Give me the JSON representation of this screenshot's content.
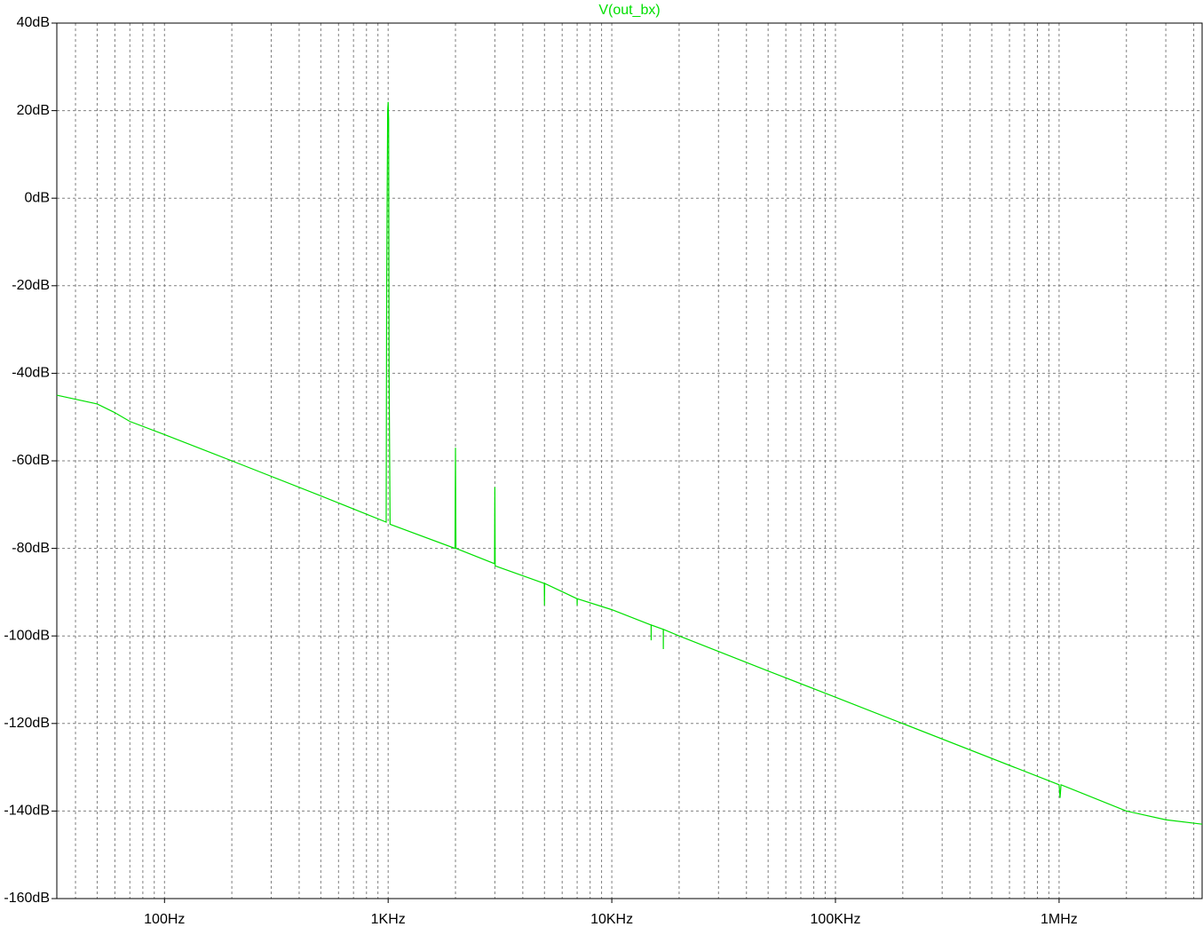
{
  "chart_data": {
    "type": "line",
    "log_x": true,
    "grid": true,
    "series": [
      {
        "name": "V(out_bx)",
        "color": "#00e000",
        "x": [
          33,
          50,
          60,
          70,
          100,
          200,
          500,
          980,
          985,
          995,
          1000,
          1005,
          1010,
          1020,
          1990,
          2000,
          2010,
          2990,
          3000,
          3010,
          4990,
          5000,
          5010,
          6990,
          7000,
          7010,
          10000,
          14990,
          15000,
          15010,
          16990,
          17000,
          17010,
          20000,
          50000,
          100000,
          1000000,
          1010000,
          1020000,
          2000000,
          3000000,
          4360000
        ],
        "values": [
          -45,
          -47,
          -49,
          -51,
          -54,
          -60,
          -68,
          -74,
          -20,
          20,
          22,
          18,
          -40,
          -74.5,
          -80,
          -57,
          -80,
          -83.5,
          -66,
          -84,
          -88,
          -93,
          -88,
          -91.5,
          -93,
          -91.5,
          -94,
          -97.5,
          -101,
          -97.5,
          -98.5,
          -103,
          -98.5,
          -100,
          -108,
          -114,
          -134,
          -137,
          -134,
          -140,
          -142,
          -143
        ]
      }
    ],
    "xlim": [
      33,
      4360000
    ],
    "xticks": [
      {
        "value": 100,
        "label": "100Hz"
      },
      {
        "value": 1000,
        "label": "1KHz"
      },
      {
        "value": 10000,
        "label": "10KHz"
      },
      {
        "value": 100000,
        "label": "100KHz"
      },
      {
        "value": 1000000,
        "label": "1MHz"
      }
    ],
    "x_minor_ticks": [
      40,
      50,
      60,
      70,
      80,
      90,
      200,
      300,
      400,
      500,
      600,
      700,
      800,
      900,
      2000,
      3000,
      4000,
      5000,
      6000,
      7000,
      8000,
      9000,
      20000,
      30000,
      40000,
      50000,
      60000,
      70000,
      80000,
      90000,
      200000,
      300000,
      400000,
      500000,
      600000,
      700000,
      800000,
      900000,
      2000000,
      3000000,
      4000000
    ],
    "ylim": [
      -160,
      40
    ],
    "yticks": [
      {
        "value": 40,
        "label": "40dB"
      },
      {
        "value": 20,
        "label": "20dB"
      },
      {
        "value": 0,
        "label": "0dB"
      },
      {
        "value": -20,
        "label": "-20dB"
      },
      {
        "value": -40,
        "label": "-40dB"
      },
      {
        "value": -60,
        "label": "-60dB"
      },
      {
        "value": -80,
        "label": "-80dB"
      },
      {
        "value": -100,
        "label": "-100dB"
      },
      {
        "value": -120,
        "label": "-120dB"
      },
      {
        "value": -140,
        "label": "-140dB"
      },
      {
        "value": -160,
        "label": "-160dB"
      }
    ]
  }
}
